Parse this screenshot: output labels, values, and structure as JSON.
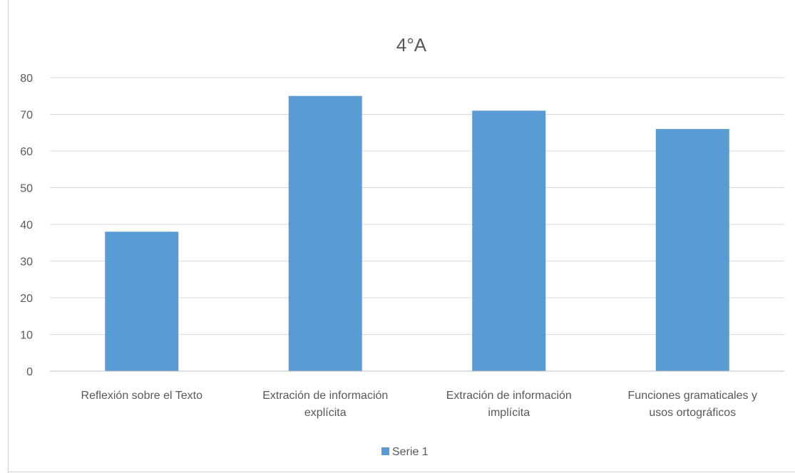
{
  "chart_data": {
    "type": "bar",
    "title": "4°A",
    "xlabel": "",
    "ylabel": "",
    "categories": [
      [
        "Reflexión sobre el Texto"
      ],
      [
        "Extración de información",
        "explícita"
      ],
      [
        "Extración de información",
        "implícita"
      ],
      [
        "Funciones gramaticales y",
        "usos ortográficos"
      ]
    ],
    "series": [
      {
        "name": "Serie 1",
        "values": [
          38,
          75,
          71,
          66
        ]
      }
    ],
    "ylim": [
      0,
      80
    ],
    "yticks": [
      0,
      10,
      20,
      30,
      40,
      50,
      60,
      70,
      80
    ],
    "grid": true,
    "legend": "bottom",
    "colors": {
      "bar": "#5b9bd5",
      "grid": "#d9d9d9",
      "axis": "#bfbfbf",
      "text": "#595959"
    }
  }
}
